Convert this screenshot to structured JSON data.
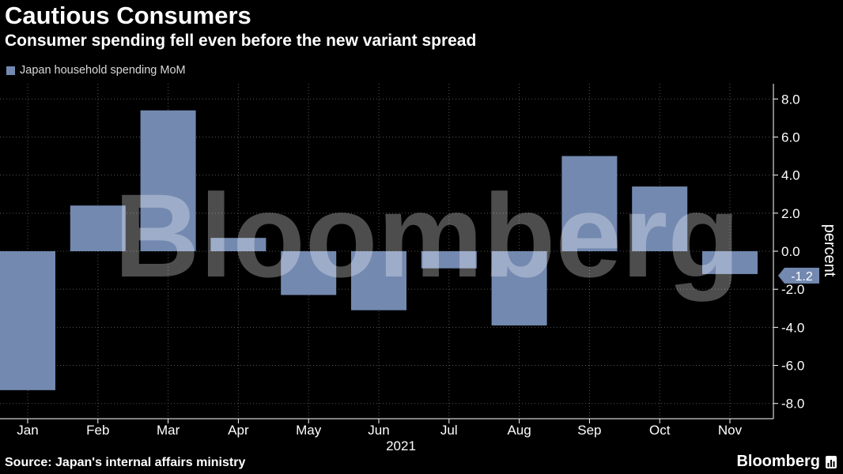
{
  "header": {
    "title": "Cautious Consumers",
    "subtitle": "Consumer spending fell even before the new variant spread"
  },
  "footer": {
    "source": "Source: Japan's internal affairs ministry",
    "brand": "Bloomberg"
  },
  "watermark": "Bloomberg",
  "colors": {
    "background": "#000000",
    "bar": "#7389b0",
    "grid": "#555555",
    "axis": "#ffffff"
  },
  "chart_data": {
    "type": "bar",
    "title": "Cautious Consumers",
    "subtitle": "Consumer spending fell even before the new variant spread",
    "categories": [
      "Jan",
      "Feb",
      "Mar",
      "Apr",
      "May",
      "Jun",
      "Jul",
      "Aug",
      "Sep",
      "Oct",
      "Nov"
    ],
    "x_group_label": "2021",
    "series": [
      {
        "name": "Japan household spending MoM",
        "values": [
          -7.3,
          2.4,
          7.4,
          0.7,
          -2.3,
          -3.1,
          -0.9,
          -3.9,
          5.0,
          3.4,
          -1.2
        ]
      }
    ],
    "ylabel": "percent",
    "ylim": [
      -8.8,
      8.8
    ],
    "yticks": [
      8,
      6,
      4,
      2,
      0,
      -2,
      -4,
      -6,
      -8
    ],
    "ytick_labels": [
      "8.0",
      "6.0",
      "4.0",
      "2.0",
      "0.0",
      "-2.0",
      "-4.0",
      "-6.0",
      "-8.0"
    ],
    "y_axis_position": "right",
    "grid": true,
    "legend_position": "top-left",
    "last_value_callout": "-1.2"
  }
}
